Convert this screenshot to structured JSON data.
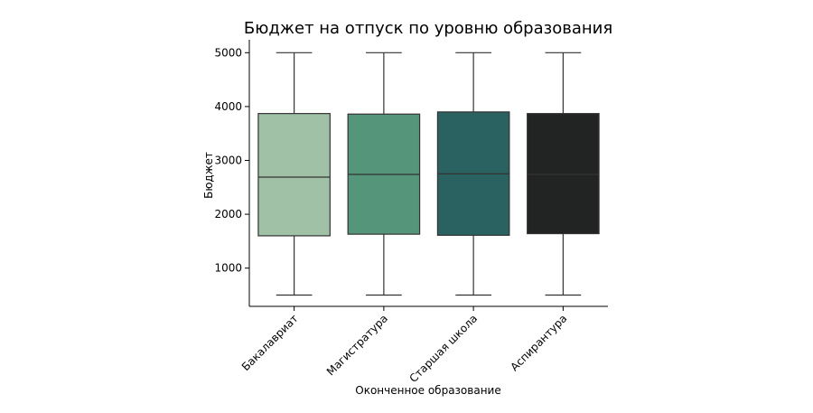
{
  "chart_data": {
    "type": "box",
    "title": "Бюджет на отпуск по уровню образования",
    "xlabel": "Оконченное образование",
    "ylabel": "Бюджет",
    "ylim": [
      290,
      5240
    ],
    "yticks": [
      1000,
      2000,
      3000,
      4000,
      5000
    ],
    "ytick_labels": [
      "1000",
      "2000",
      "3000",
      "4000",
      "5000"
    ],
    "categories": [
      "Бакалавриат",
      "Магистратура",
      "Старшая школа",
      "Аспирантура"
    ],
    "boxes": [
      {
        "category": "Бакалавриат",
        "min": 500,
        "q1": 1600,
        "median": 2690,
        "q3": 3870,
        "max": 5000,
        "color": "#a0c1a5"
      },
      {
        "category": "Магистратура",
        "min": 500,
        "q1": 1630,
        "median": 2740,
        "q3": 3860,
        "max": 5000,
        "color": "#55967a"
      },
      {
        "category": "Старшая школа",
        "min": 500,
        "q1": 1610,
        "median": 2750,
        "q3": 3900,
        "max": 5000,
        "color": "#2a6262"
      },
      {
        "category": "Аспирантура",
        "min": 500,
        "q1": 1640,
        "median": 2740,
        "q3": 3870,
        "max": 5000,
        "color": "#212423"
      }
    ],
    "grid": false,
    "legend": "none"
  }
}
